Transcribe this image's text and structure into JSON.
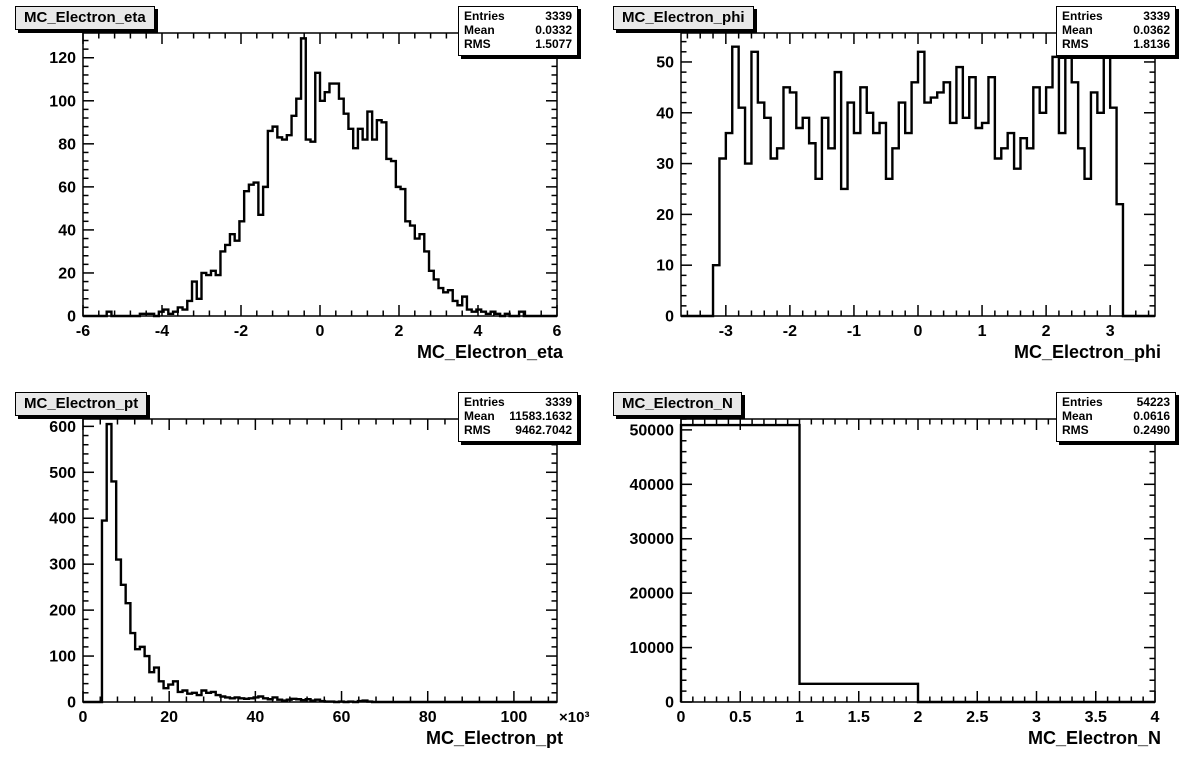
{
  "canvas": {
    "background": "#ffffff",
    "line_color": "#000000",
    "title_box_fill": "#e8e8e8",
    "stats_box_fill": "#ffffff"
  },
  "chart_data": [
    {
      "type": "bar",
      "style": "step-histogram",
      "title": "MC_Electron_eta",
      "xlabel": "MC_Electron_eta",
      "stats": {
        "entries_label": "Entries",
        "entries": "3339",
        "mean_label": "Mean",
        "mean": "0.0332",
        "rms_label": "RMS",
        "rms": "1.5077"
      },
      "x_min": -6,
      "x_max": 6,
      "y_min": 0,
      "y_max": 131.5,
      "x_tick_step": 2,
      "x_tick_labels": [
        "-6",
        "-4",
        "-2",
        "0",
        "2",
        "4",
        "6"
      ],
      "y_tick_step": 20,
      "y_tick_labels": [
        "0",
        "20",
        "40",
        "60",
        "80",
        "100",
        "120"
      ],
      "x_minor_divs": 5,
      "y_minor_divs": 5,
      "grid": false,
      "legend": false,
      "values": [
        0,
        0,
        0,
        0,
        0,
        2,
        0,
        0,
        0,
        0,
        0,
        0,
        1,
        1,
        1,
        0,
        2,
        3,
        1,
        2,
        4,
        3,
        7,
        16,
        8,
        20,
        19,
        21,
        19,
        30,
        33,
        38,
        35,
        44,
        58,
        61,
        62,
        47,
        60,
        86,
        88,
        83,
        82,
        84,
        93,
        101,
        129,
        82,
        81,
        113,
        100,
        104,
        108,
        108,
        101,
        94,
        87,
        78,
        87,
        82,
        95,
        82,
        91,
        90,
        73,
        72,
        60,
        59,
        44,
        42,
        36,
        38,
        30,
        21,
        17,
        13,
        11,
        12,
        7,
        5,
        9,
        3,
        2,
        3,
        2,
        1,
        2,
        1,
        0,
        1,
        0,
        0,
        2,
        0,
        0,
        0,
        0,
        0,
        0,
        0
      ]
    },
    {
      "type": "bar",
      "style": "step-histogram",
      "title": "MC_Electron_phi",
      "xlabel": "MC_Electron_phi",
      "stats": {
        "entries_label": "Entries",
        "entries": "3339",
        "mean_label": "Mean",
        "mean": "0.0362",
        "rms_label": "RMS",
        "rms": "1.8136"
      },
      "x_min": -3.7,
      "x_max": 3.7,
      "y_min": 0,
      "y_max": 55.7,
      "x_tick_step": 1,
      "x_tick_labels": [
        "-3",
        "-2",
        "-1",
        "0",
        "1",
        "2",
        "3"
      ],
      "y_tick_step": 10,
      "y_tick_labels": [
        "0",
        "10",
        "20",
        "30",
        "40",
        "50"
      ],
      "x_minor_divs": 5,
      "y_minor_divs": 5,
      "grid": false,
      "legend": false,
      "values": [
        0,
        0,
        0,
        0,
        0,
        10,
        31,
        36,
        53,
        41,
        30,
        52,
        42,
        39,
        31,
        33,
        45,
        44,
        37,
        39,
        34,
        27,
        39,
        33,
        48,
        25,
        42,
        36,
        45,
        40,
        36,
        38,
        27,
        33,
        42,
        36,
        46,
        52,
        42,
        43,
        44,
        46,
        38,
        49,
        39,
        47,
        37,
        38,
        47,
        31,
        33,
        36,
        29,
        35,
        33,
        45,
        40,
        45,
        51,
        36,
        53,
        46,
        33,
        27,
        44,
        40,
        52,
        41,
        22,
        0,
        0,
        0,
        0,
        0
      ]
    },
    {
      "type": "bar",
      "style": "step-histogram",
      "title": "MC_Electron_pt",
      "xlabel": "MC_Electron_pt",
      "x_exponent": "×10³",
      "stats": {
        "entries_label": "Entries",
        "entries": "3339",
        "mean_label": "Mean",
        "mean": "11583.1632",
        "rms_label": "RMS",
        "rms": "9462.7042"
      },
      "x_min": 0,
      "x_max": 110000,
      "y_min": 0,
      "y_max": 616,
      "x_tick_step": 20000,
      "x_tick_labels": [
        "0",
        "20",
        "40",
        "60",
        "80",
        "100"
      ],
      "y_tick_step": 100,
      "y_tick_labels": [
        "0",
        "100",
        "200",
        "300",
        "400",
        "500",
        "600"
      ],
      "x_minor_divs": 5,
      "y_minor_divs": 5,
      "grid": false,
      "legend": false,
      "values": [
        0,
        0,
        0,
        0,
        395,
        605,
        480,
        310,
        255,
        215,
        150,
        115,
        120,
        100,
        65,
        75,
        45,
        30,
        38,
        45,
        22,
        25,
        18,
        20,
        15,
        25,
        20,
        22,
        15,
        12,
        10,
        8,
        10,
        8,
        7,
        8,
        10,
        12,
        8,
        6,
        10,
        5,
        3,
        5,
        7,
        6,
        4,
        6,
        3,
        5,
        2,
        1,
        1,
        0,
        1,
        0,
        1,
        0,
        2,
        3,
        1,
        0,
        0,
        0,
        0,
        0,
        0,
        0,
        0,
        0,
        0,
        0,
        0,
        0,
        0,
        0,
        0,
        0,
        0,
        0,
        0,
        0,
        0,
        0,
        0,
        0,
        0,
        0,
        0,
        0,
        0,
        0,
        0,
        0,
        0,
        0,
        0,
        0,
        0,
        0
      ]
    },
    {
      "type": "bar",
      "style": "step-histogram",
      "title": "MC_Electron_N",
      "xlabel": "MC_Electron_N",
      "stats": {
        "entries_label": "Entries",
        "entries": "54223",
        "mean_label": "Mean",
        "mean": "0.0616",
        "rms_label": "RMS",
        "rms": "0.2490"
      },
      "x_min": 0,
      "x_max": 4,
      "y_min": 0,
      "y_max": 52000,
      "x_tick_step": 0.5,
      "x_tick_labels": [
        "0",
        "0.5",
        "1",
        "1.5",
        "2",
        "2.5",
        "3",
        "3.5",
        "4"
      ],
      "y_tick_step": 10000,
      "y_tick_labels": [
        "0",
        "10000",
        "20000",
        "30000",
        "40000",
        "50000"
      ],
      "x_minor_divs": 5,
      "y_minor_divs": 5,
      "grid": false,
      "legend": false,
      "values": [
        50884,
        3339,
        0,
        0
      ]
    }
  ]
}
